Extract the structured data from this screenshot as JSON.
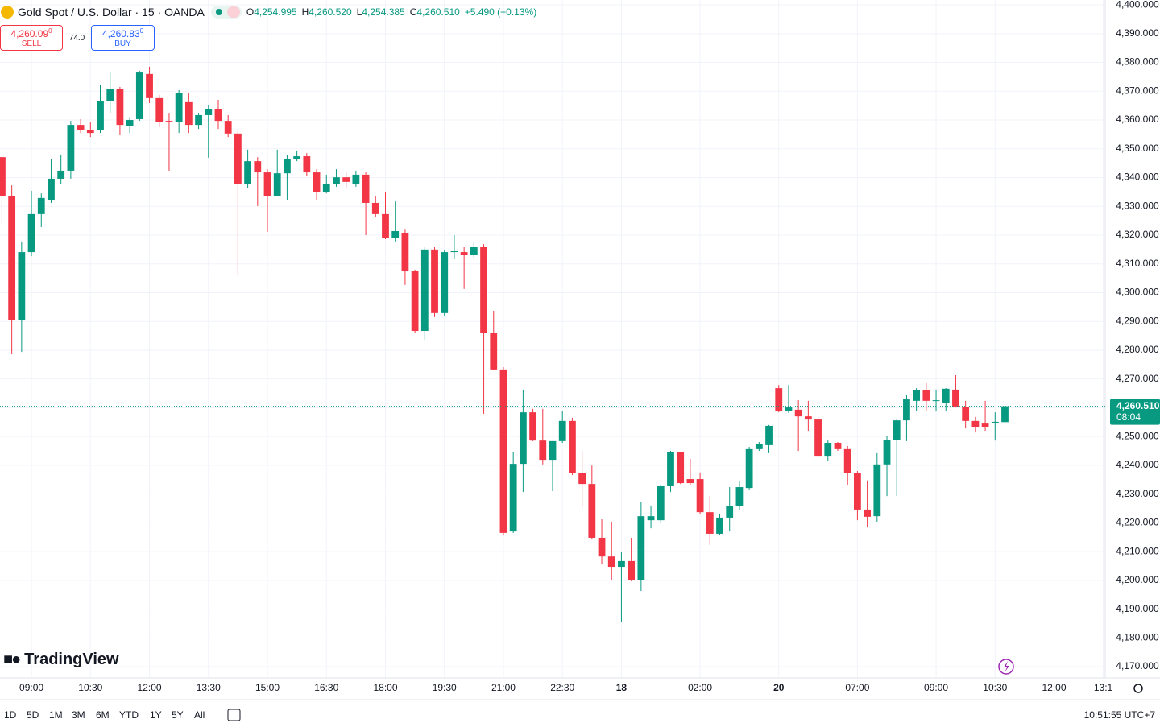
{
  "header": {
    "symbol": "Gold Spot / U.S. Dollar · 15 · OANDA",
    "ohlc": [
      {
        "key": "O",
        "value": "4,254.995"
      },
      {
        "key": "H",
        "value": "4,260.520"
      },
      {
        "key": "L",
        "value": "4,254.385"
      },
      {
        "key": "C",
        "value": "4,260.510"
      }
    ],
    "change": "+5.490 (+0.13%)"
  },
  "trade": {
    "sell_price": "4,260.09",
    "sell_price_tail": "0",
    "sell": "SELL",
    "spread": "74.0",
    "buy_price": "4,260.83",
    "buy_price_tail": "0",
    "buy": "BUY"
  },
  "logo": "TradingView",
  "toolbar": {
    "ranges": [
      "1D",
      "5D",
      "1M",
      "3M",
      "6M",
      "YTD",
      "1Y",
      "5Y",
      "All"
    ],
    "clock": "10:51:55 UTC+7"
  },
  "chart_data": {
    "type": "candlestick",
    "up_color": "#089981",
    "down_color": "#f23645",
    "grid": true,
    "open": [
      4347.1,
      4333.7,
      4290.6,
      4314.1,
      4327.3,
      4332.3,
      4339.6,
      4342.4,
      4358.3,
      4356.4,
      4356.4,
      4366.7,
      4370.9,
      4357.8,
      4360.3,
      4376.0,
      4367.6,
      4359.7,
      4359.2,
      4366.2,
      4358.3,
      4361.7,
      4363.9,
      4359.7,
      4355.3,
      4337.9,
      4345.7,
      4341.8,
      4333.7,
      4341.5,
      4346.3,
      4347.4,
      4341.8,
      4335.1,
      4337.9,
      4340.1,
      4337.9,
      4341.0,
      4331.2,
      4327.3,
      4318.9,
      4320.8,
      4307.4,
      4286.7,
      4315.0,
      4292.9,
      4314.1,
      4314.1,
      4313.0,
      4315.8,
      4286.1,
      4273.3,
      4217.0,
      4240.5,
      4258.4,
      4248.6,
      4241.9,
      4248.4,
      4255.4,
      4237.2,
      4233.5,
      4214.8,
      4208.3,
      4204.7,
      4206.7,
      4200.2,
      4220.9,
      4220.9,
      4232.7,
      4244.5,
      4235.2,
      4235.2,
      4223.7,
      4216.2,
      4221.8,
      4225.7,
      4232.1,
      4245.6,
      4247.0,
      4266.8,
      4259.0,
      4259.3,
      4257.0,
      4255.9,
      4243.3,
      4247.8,
      4245.6,
      4237.2,
      4224.6,
      4222.3,
      4240.3,
      4248.9,
      4255.6,
      4262.4,
      4266.0,
      4262.4,
      4261.8,
      4266.3,
      4260.4,
      4255.4,
      4254.5,
      4254.8,
      4254.995
    ],
    "high": [
      4347.7,
      4337.3,
      4317.8,
      4335.4,
      4334.5,
      4346.3,
      4348.0,
      4359.7,
      4360.3,
      4359.2,
      4372.3,
      4376.5,
      4371.5,
      4361.1,
      4377.1,
      4378.5,
      4368.7,
      4362.5,
      4370.4,
      4369.5,
      4362.5,
      4365.3,
      4367.0,
      4361.7,
      4356.9,
      4349.7,
      4347.1,
      4342.9,
      4349.7,
      4347.7,
      4349.4,
      4348.5,
      4342.9,
      4341.0,
      4342.9,
      4341.8,
      4342.4,
      4341.8,
      4333.4,
      4335.1,
      4331.7,
      4321.9,
      4308.0,
      4315.8,
      4315.8,
      4314.7,
      4320.0,
      4315.8,
      4317.5,
      4316.9,
      4293.7,
      4274.1,
      4244.5,
      4266.3,
      4259.6,
      4259.6,
      4248.4,
      4259.0,
      4256.5,
      4245.0,
      4239.9,
      4221.2,
      4220.4,
      4209.8,
      4214.8,
      4227.1,
      4226.0,
      4233.3,
      4245.0,
      4244.7,
      4242.2,
      4237.5,
      4229.3,
      4223.2,
      4232.4,
      4234.4,
      4246.4,
      4248.1,
      4254.0,
      4267.9,
      4267.9,
      4262.6,
      4262.4,
      4257.0,
      4248.6,
      4248.1,
      4246.7,
      4238.0,
      4234.7,
      4244.2,
      4250.3,
      4256.2,
      4264.6,
      4266.8,
      4268.5,
      4266.3,
      4266.8,
      4271.3,
      4262.4,
      4256.8,
      4262.4,
      4258.4,
      4260.52
    ],
    "low": [
      4323.9,
      4278.6,
      4279.4,
      4312.7,
      4322.8,
      4331.2,
      4337.9,
      4339.6,
      4355.5,
      4354.1,
      4355.5,
      4362.5,
      4354.7,
      4355.5,
      4359.7,
      4365.9,
      4357.5,
      4342.1,
      4355.5,
      4355.5,
      4356.9,
      4346.9,
      4356.9,
      4354.1,
      4306.3,
      4336.5,
      4330.1,
      4321.1,
      4333.4,
      4332.3,
      4345.7,
      4340.7,
      4332.3,
      4334.5,
      4336.8,
      4336.2,
      4336.8,
      4320.0,
      4326.2,
      4318.6,
      4317.8,
      4302.7,
      4285.9,
      4283.6,
      4291.5,
      4292.0,
      4311.6,
      4301.3,
      4312.2,
      4257.9,
      4273.0,
      4215.6,
      4216.5,
      4230.7,
      4248.4,
      4240.3,
      4231.0,
      4247.8,
      4236.6,
      4225.4,
      4214.2,
      4205.8,
      4200.2,
      4185.7,
      4199.7,
      4196.3,
      4218.1,
      4219.8,
      4230.7,
      4233.5,
      4233.0,
      4223.2,
      4212.3,
      4215.9,
      4217.0,
      4224.6,
      4231.6,
      4245.0,
      4244.2,
      4258.4,
      4258.2,
      4245.0,
      4252.0,
      4242.8,
      4241.6,
      4245.0,
      4233.0,
      4220.9,
      4218.4,
      4220.4,
      4229.3,
      4229.3,
      4248.4,
      4259.0,
      4259.0,
      4258.7,
      4259.0,
      4260.1,
      4252.8,
      4251.4,
      4252.0,
      4248.6,
      4254.385
    ],
    "close": [
      4333.7,
      4290.6,
      4314.1,
      4327.3,
      4332.9,
      4339.6,
      4342.4,
      4358.3,
      4356.4,
      4355.5,
      4366.7,
      4370.9,
      4358.3,
      4360.0,
      4376.5,
      4367.6,
      4359.2,
      4359.5,
      4369.5,
      4358.3,
      4361.7,
      4363.9,
      4359.7,
      4355.3,
      4337.9,
      4345.7,
      4341.8,
      4333.7,
      4341.5,
      4346.3,
      4347.4,
      4341.8,
      4335.1,
      4337.9,
      4340.1,
      4338.5,
      4341.0,
      4331.2,
      4327.3,
      4318.9,
      4321.4,
      4307.4,
      4286.7,
      4315.0,
      4292.9,
      4314.1,
      4314.4,
      4313.0,
      4315.8,
      4286.1,
      4273.3,
      4216.5,
      4240.5,
      4258.4,
      4248.6,
      4241.9,
      4248.4,
      4255.4,
      4237.2,
      4233.5,
      4214.8,
      4208.3,
      4204.7,
      4206.7,
      4200.2,
      4222.3,
      4222.3,
      4232.7,
      4244.5,
      4233.8,
      4233.8,
      4223.7,
      4216.2,
      4221.8,
      4225.7,
      4232.4,
      4245.6,
      4247.3,
      4253.7,
      4259.0,
      4260.1,
      4257.0,
      4255.9,
      4243.3,
      4247.8,
      4245.6,
      4237.2,
      4224.6,
      4222.1,
      4240.3,
      4248.9,
      4255.6,
      4262.9,
      4266.0,
      4262.4,
      4262.6,
      4266.6,
      4260.4,
      4255.4,
      4253.4,
      4253.4,
      4255.1,
      4260.51
    ],
    "xlim": [
      -0.2,
      112.2
    ],
    "xticks": [
      {
        "value": 3,
        "label": "09:00"
      },
      {
        "value": 9,
        "label": "10:30"
      },
      {
        "value": 15,
        "label": "12:00"
      },
      {
        "value": 21,
        "label": "13:30"
      },
      {
        "value": 27,
        "label": "15:00"
      },
      {
        "value": 33,
        "label": "16:30"
      },
      {
        "value": 39,
        "label": "18:00"
      },
      {
        "value": 45,
        "label": "19:30"
      },
      {
        "value": 51,
        "label": "21:00"
      },
      {
        "value": 57,
        "label": "22:30"
      },
      {
        "value": 63,
        "label": "18"
      },
      {
        "value": 71,
        "label": "02:00"
      },
      {
        "value": 79,
        "label": "20"
      },
      {
        "value": 87,
        "label": "07:00"
      },
      {
        "value": 95,
        "label": "09:00"
      },
      {
        "value": 101,
        "label": "10:30"
      },
      {
        "value": 107,
        "label": "12:00"
      },
      {
        "value": 112,
        "label": "13:1"
      }
    ],
    "ylim": [
      4166.1,
      4401.7
    ],
    "yticks": [
      {
        "value": 4170,
        "label": "4,170.000"
      },
      {
        "value": 4180,
        "label": "4,180.000"
      },
      {
        "value": 4190,
        "label": "4,190.000"
      },
      {
        "value": 4200,
        "label": "4,200.000"
      },
      {
        "value": 4210,
        "label": "4,210.000"
      },
      {
        "value": 4220,
        "label": "4,220.000"
      },
      {
        "value": 4230,
        "label": "4,230.000"
      },
      {
        "value": 4240,
        "label": "4,240.000"
      },
      {
        "value": 4250,
        "label": "4,250.000"
      },
      {
        "value": 4260,
        "label": "4,260.000"
      },
      {
        "value": 4270,
        "label": "4,270.000"
      },
      {
        "value": 4280,
        "label": "4,280.000"
      },
      {
        "value": 4290,
        "label": "4,290.000"
      },
      {
        "value": 4300,
        "label": "4,300.000"
      },
      {
        "value": 4310,
        "label": "4,310.000"
      },
      {
        "value": 4320,
        "label": "4,320.000"
      },
      {
        "value": 4330,
        "label": "4,330.000"
      },
      {
        "value": 4340,
        "label": "4,340.000"
      },
      {
        "value": 4350,
        "label": "4,350.000"
      },
      {
        "value": 4360,
        "label": "4,360.000"
      },
      {
        "value": 4370,
        "label": "4,370.000"
      },
      {
        "value": 4380,
        "label": "4,380.000"
      },
      {
        "value": 4390,
        "label": "4,390.000"
      },
      {
        "value": 4400,
        "label": "4,400.000"
      }
    ],
    "last_price": {
      "value": 4260.51,
      "label": "4,260.510"
    },
    "countdown": "08:04"
  }
}
